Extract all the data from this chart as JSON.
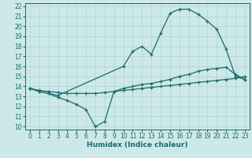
{
  "xlabel": "Humidex (Indice chaleur)",
  "xlim": [
    -0.5,
    23.5
  ],
  "ylim": [
    9.7,
    22.3
  ],
  "xticks": [
    0,
    1,
    2,
    3,
    4,
    5,
    6,
    7,
    8,
    9,
    10,
    11,
    12,
    13,
    14,
    15,
    16,
    17,
    18,
    19,
    20,
    21,
    22,
    23
  ],
  "yticks": [
    10,
    11,
    12,
    13,
    14,
    15,
    16,
    17,
    18,
    19,
    20,
    21,
    22
  ],
  "bg_color": "#cde8e8",
  "line_color": "#1a6b6b",
  "line1_x": [
    0,
    1,
    2,
    3,
    10,
    11,
    12,
    13,
    14,
    15,
    16,
    17,
    18,
    19,
    20,
    21,
    22,
    23
  ],
  "line1_y": [
    13.8,
    13.5,
    13.3,
    13.1,
    16.0,
    17.5,
    18.0,
    17.2,
    19.3,
    21.3,
    21.7,
    21.7,
    21.2,
    20.5,
    19.7,
    17.7,
    15.0,
    14.7
  ],
  "line2_x": [
    0,
    1,
    2,
    3,
    4,
    5,
    6,
    7,
    8,
    9,
    10,
    11,
    12,
    13,
    14,
    15,
    16,
    17,
    18,
    19,
    20,
    21,
    22,
    23
  ],
  "line2_y": [
    13.8,
    13.6,
    13.5,
    13.4,
    13.3,
    13.3,
    13.3,
    13.3,
    13.4,
    13.5,
    13.6,
    13.7,
    13.8,
    13.9,
    14.0,
    14.1,
    14.2,
    14.3,
    14.4,
    14.5,
    14.6,
    14.7,
    14.8,
    15.0
  ],
  "line3_x": [
    0,
    1,
    2,
    3,
    4,
    5,
    6,
    7,
    8,
    9,
    10,
    11,
    12,
    13,
    14,
    15,
    16,
    17,
    18,
    19,
    20,
    21,
    22,
    23
  ],
  "line3_y": [
    13.8,
    13.5,
    13.3,
    12.9,
    12.6,
    12.2,
    11.7,
    10.0,
    10.5,
    13.5,
    13.8,
    14.0,
    14.2,
    14.3,
    14.5,
    14.7,
    15.0,
    15.2,
    15.5,
    15.7,
    15.8,
    15.9,
    15.2,
    14.7
  ],
  "grid_color": "#aed4d4",
  "tick_fontsize": 5.5,
  "xlabel_fontsize": 6.5
}
